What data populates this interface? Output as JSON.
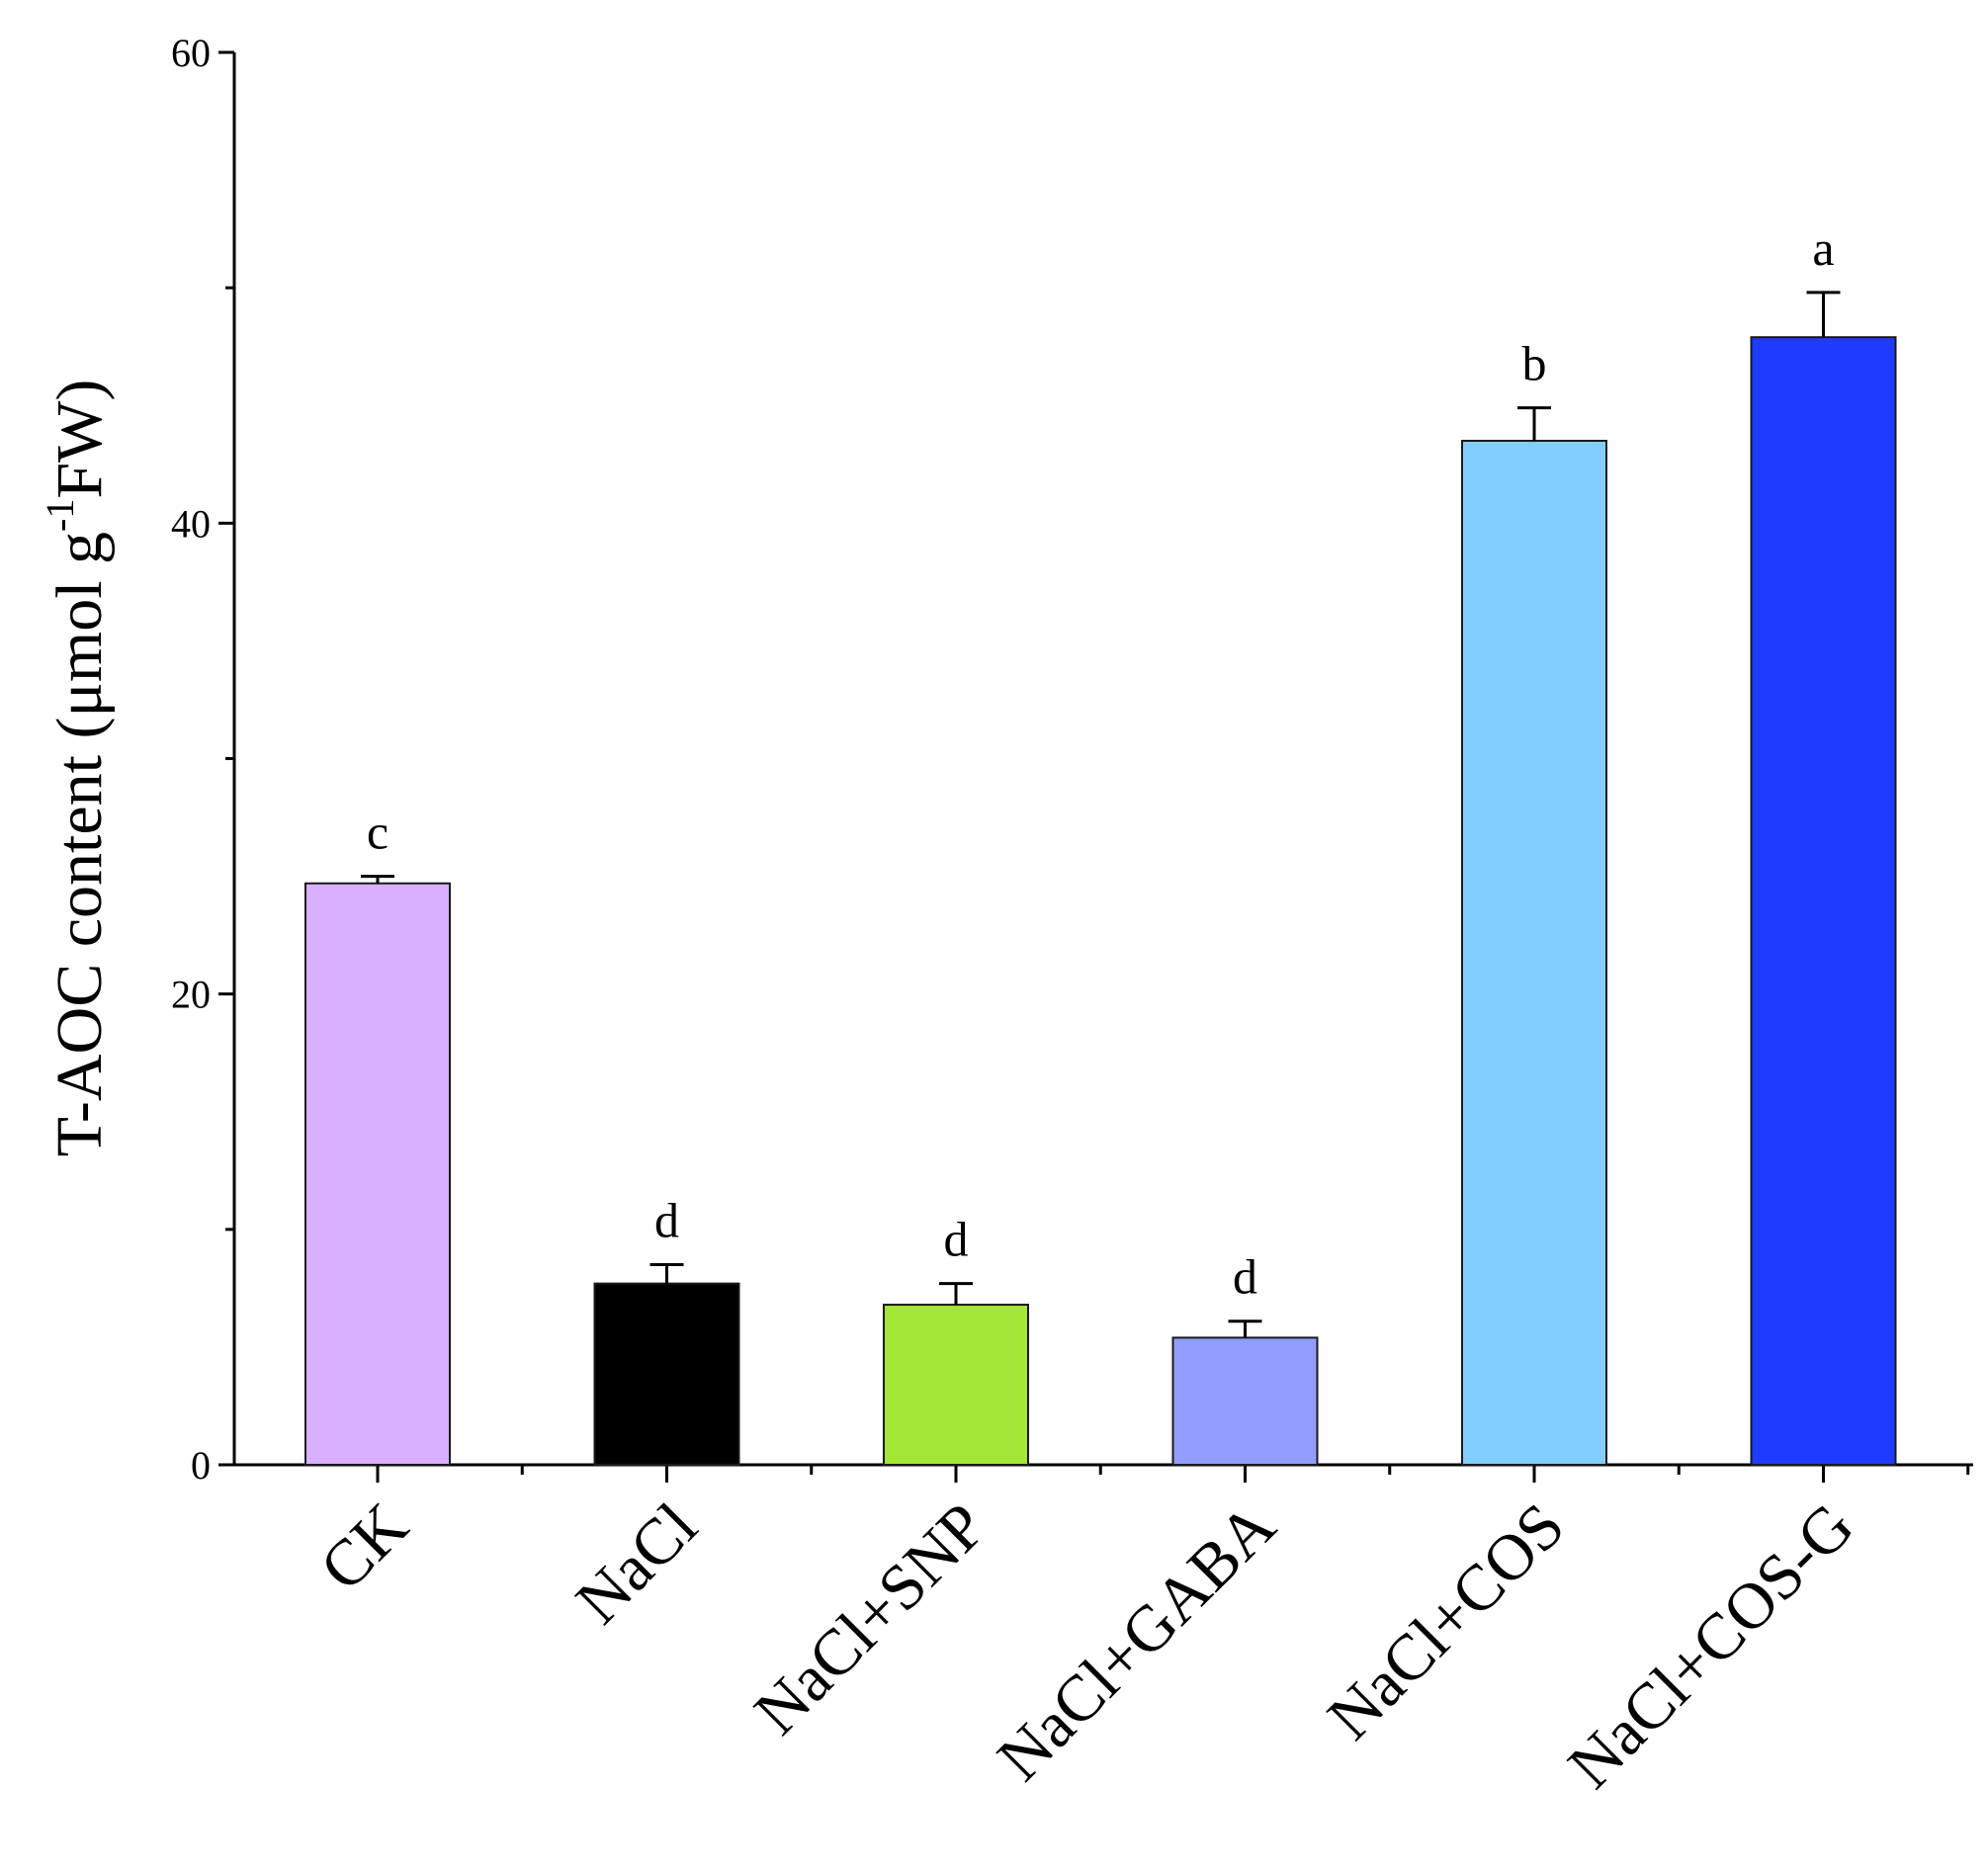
{
  "chart_data": {
    "type": "bar",
    "title": "",
    "xlabel": "",
    "ylabel": {
      "main": "T-AOC content  (μmol g",
      "superscript": "-1",
      "suffix": "FW)"
    },
    "ylim": [
      0,
      60
    ],
    "yticks": [
      0,
      20,
      40,
      60
    ],
    "categories": [
      "CK",
      "NaCl",
      "NaCl+SNP",
      "NaCl+GABA",
      "NaCl+COS",
      "NaCl+COS-G"
    ],
    "values": [
      24.7,
      7.7,
      6.8,
      5.4,
      43.5,
      47.9
    ],
    "errors": [
      0.3,
      0.8,
      0.9,
      0.7,
      1.4,
      1.9
    ],
    "significance": [
      "c",
      "d",
      "d",
      "d",
      "b",
      "a"
    ],
    "colors": [
      "#d8b0ff",
      "#000000",
      "#a3e635",
      "#919dff",
      "#81cdfd",
      "#1f3bfd"
    ]
  }
}
